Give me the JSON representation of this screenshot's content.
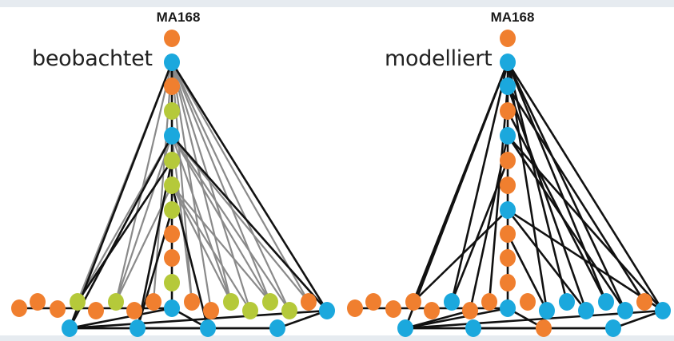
{
  "left_panel": {
    "title": "MA168",
    "label": "beobachtet"
  },
  "right_panel": {
    "title": "MA168",
    "label": "modelliert"
  },
  "colors": {
    "orange": "#f07f2f",
    "blue": "#1ba8dd",
    "green": "#b5c93a",
    "edge_observed": "#8a8a8a",
    "edge_strong": "#111111",
    "background_strip": "#e6ebf0"
  }
}
